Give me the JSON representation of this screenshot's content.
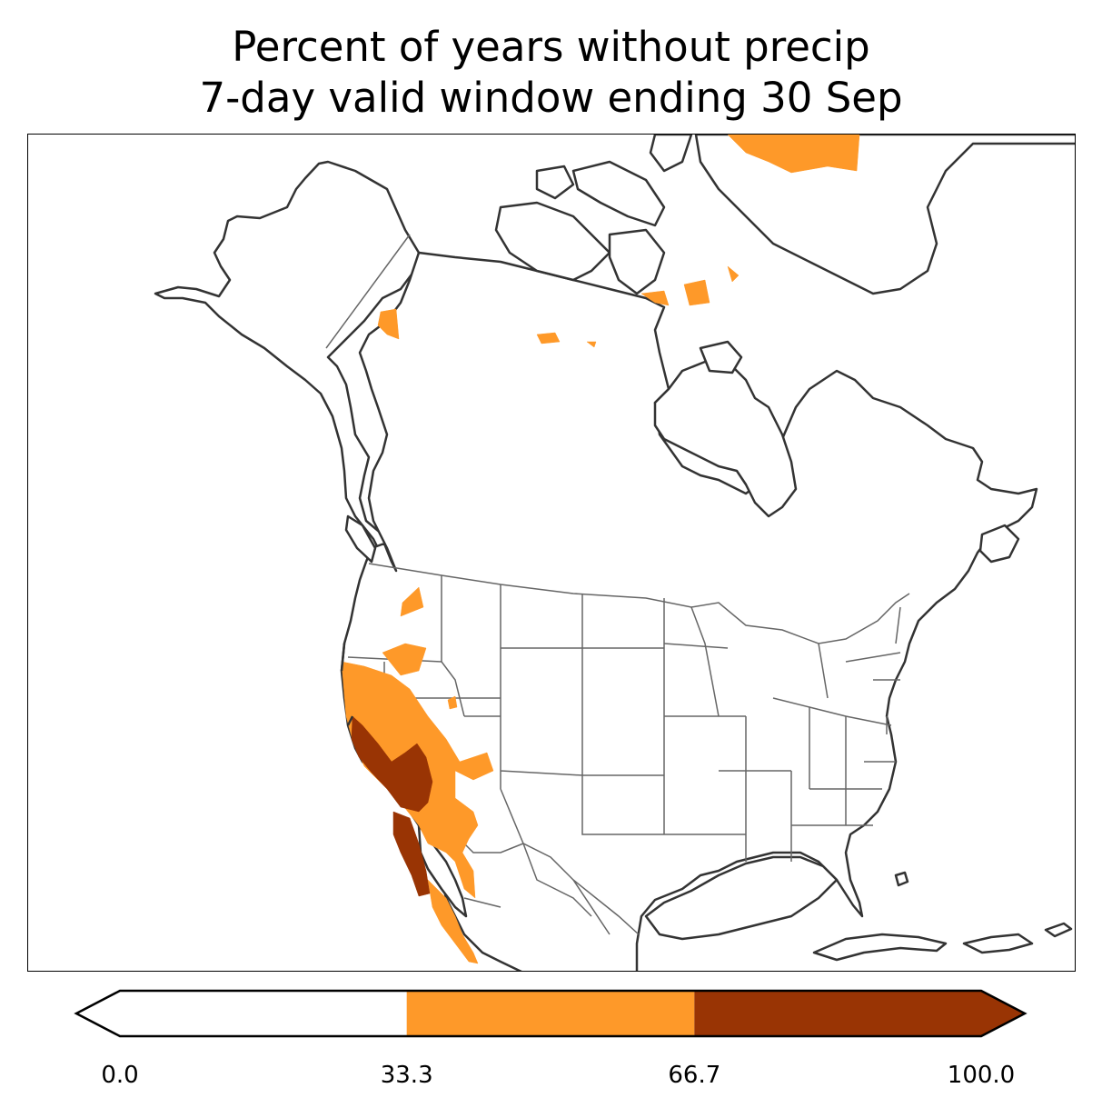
{
  "title": {
    "line1": "Percent of years without precip",
    "line2": "7-day valid window ending 30 Sep"
  },
  "map": {
    "region": "North America",
    "projection": "lambert-conformal",
    "land_fill": "#ffffff",
    "coastline_color": "#333333",
    "border_color": "#666666"
  },
  "colorbar": {
    "orientation": "horizontal",
    "extend": "both",
    "bins": [
      {
        "from": 0.0,
        "to": 33.3,
        "color": "#ffffff"
      },
      {
        "from": 33.3,
        "to": 66.7,
        "color": "#fe9929"
      },
      {
        "from": 66.7,
        "to": 100.0,
        "color": "#993404"
      }
    ],
    "ticks": [
      "0.0",
      "33.3",
      "66.7",
      "100.0"
    ]
  }
}
